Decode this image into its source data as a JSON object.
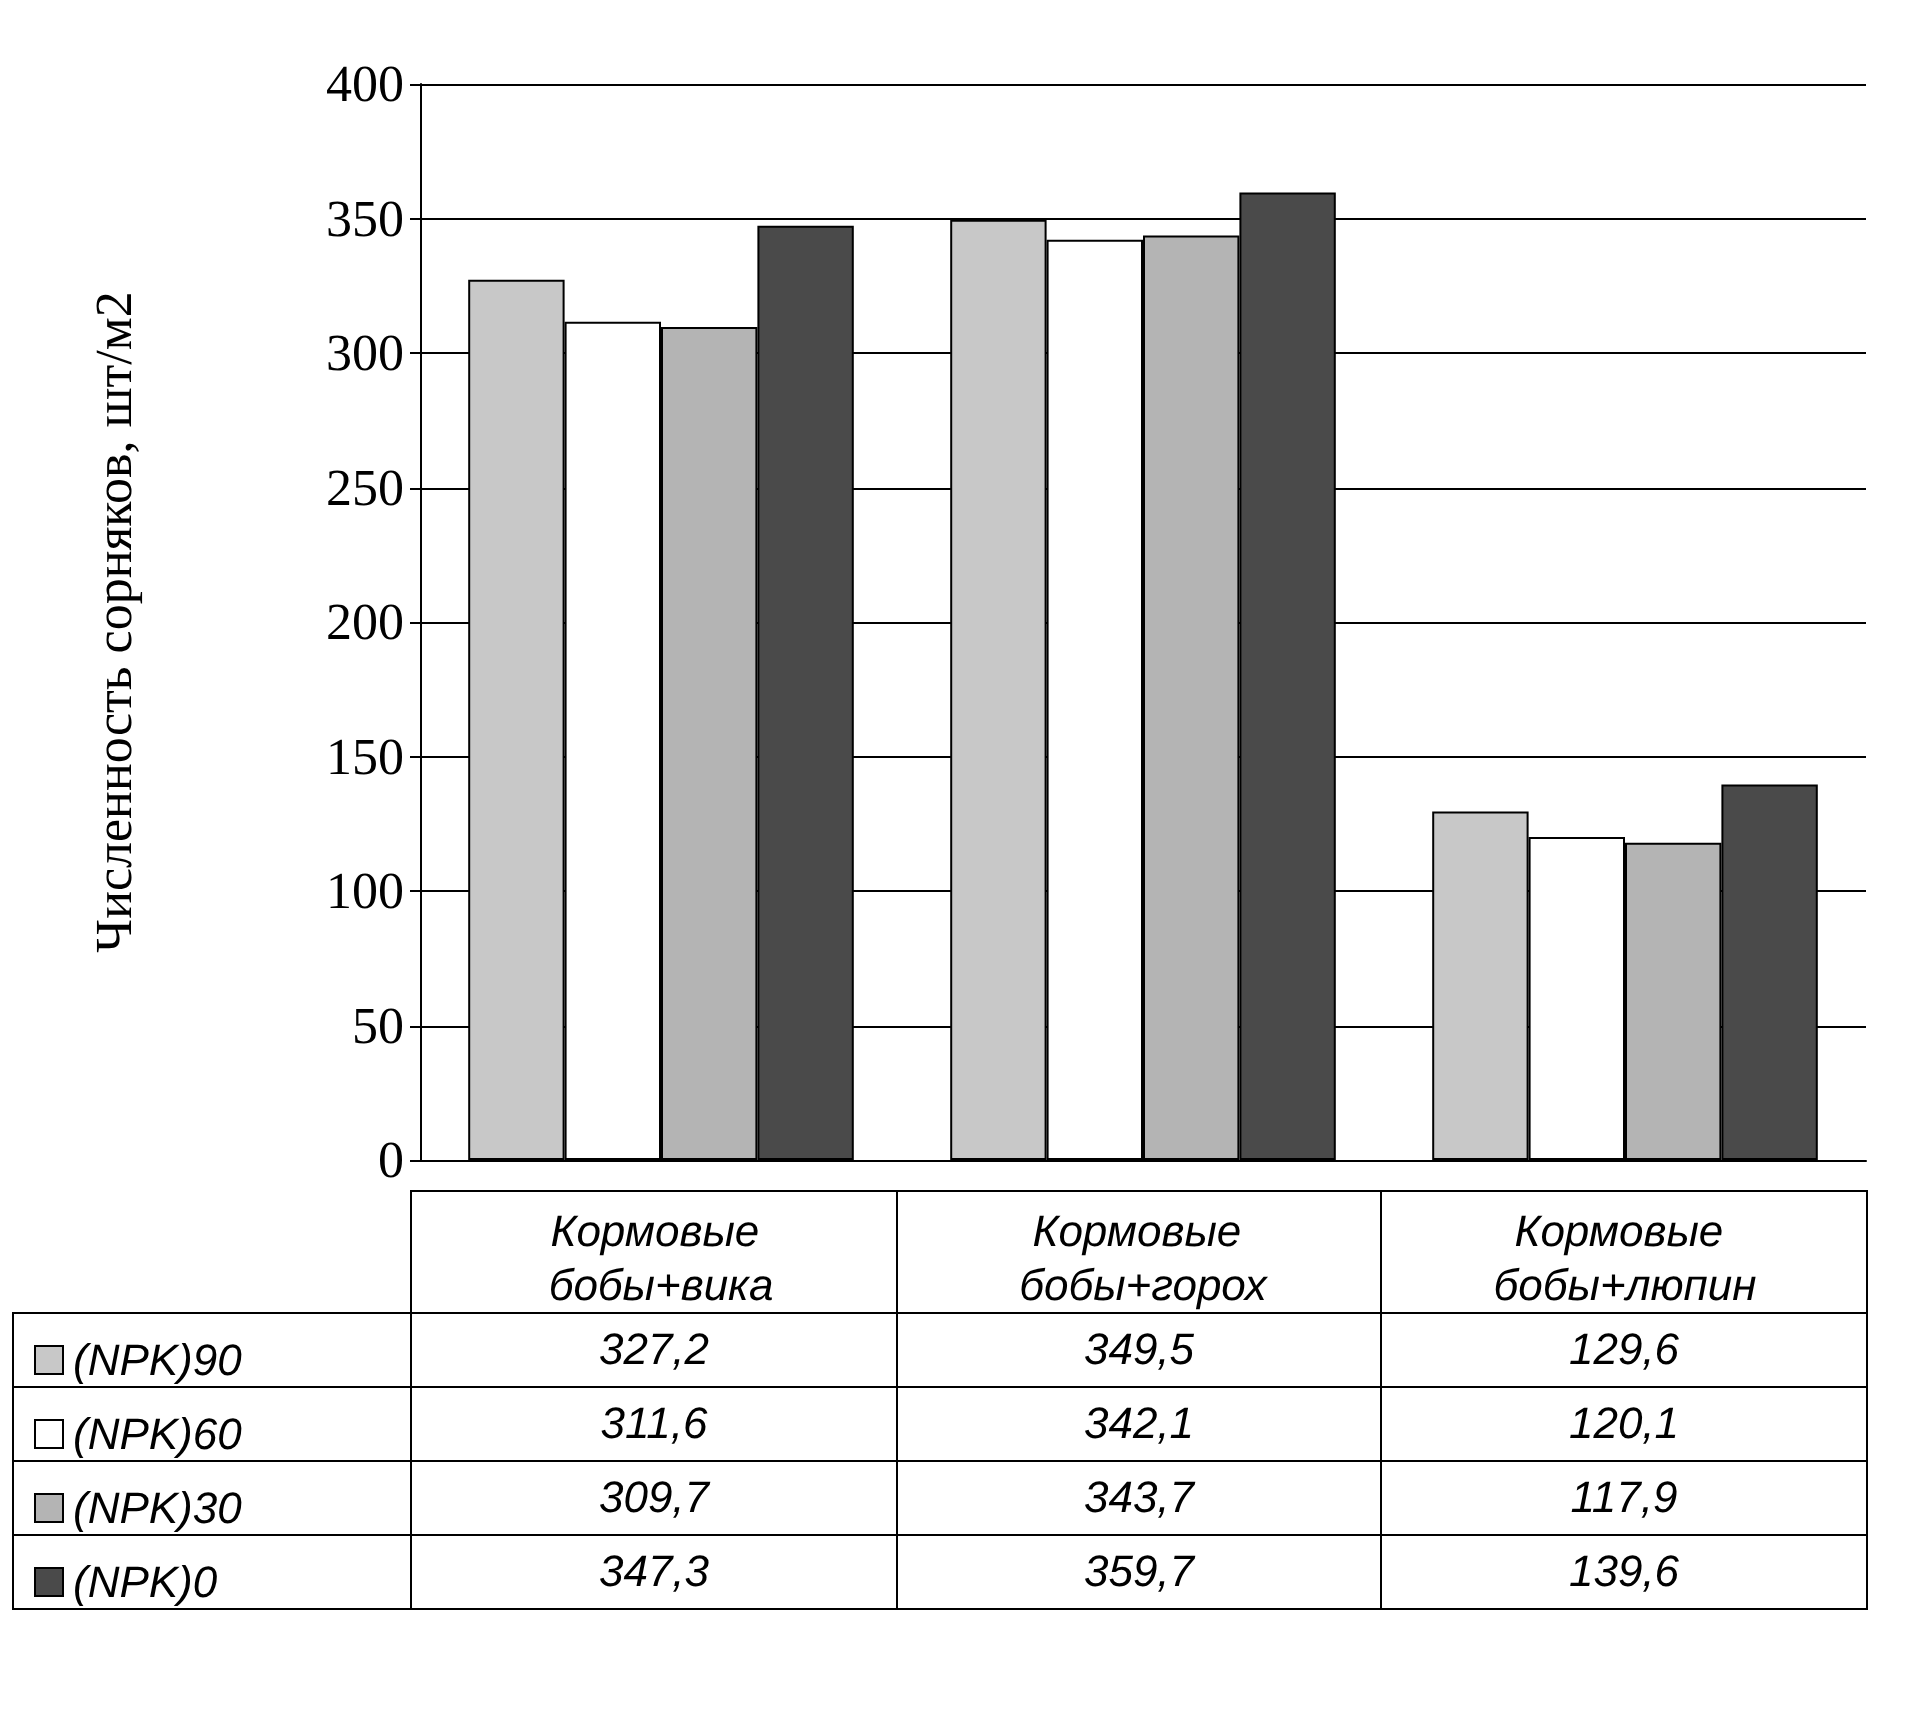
{
  "chart_data": {
    "type": "bar",
    "ylabel": "Численность сорняков, шт/м2",
    "categories": [
      "Кормовые бобы+вика",
      "Кормовые бобы+горох",
      "Кормовые бобы+люпин"
    ],
    "series": [
      {
        "name": "(NPK)90",
        "color": "#c8c8c8",
        "values": [
          327.2,
          349.5,
          129.6
        ],
        "value_labels": [
          "327,2",
          "349,5",
          "129,6"
        ]
      },
      {
        "name": "(NPK)60",
        "color": "#ffffff",
        "values": [
          311.6,
          342.1,
          120.1
        ],
        "value_labels": [
          "311,6",
          "342,1",
          "120,1"
        ]
      },
      {
        "name": "(NPK)30",
        "color": "#b4b4b4",
        "values": [
          309.7,
          343.7,
          117.9
        ],
        "value_labels": [
          "309,7",
          "343,7",
          "117,9"
        ]
      },
      {
        "name": "(NPK)0",
        "color": "#4a4a4a",
        "values": [
          347.3,
          359.7,
          139.6
        ],
        "value_labels": [
          "347,3",
          "359,7",
          "139,6"
        ]
      }
    ],
    "ylim": [
      0,
      400
    ],
    "yticks": [
      0,
      50,
      100,
      150,
      200,
      250,
      300,
      350,
      400
    ],
    "grid": "y",
    "legend": "bottom left"
  }
}
